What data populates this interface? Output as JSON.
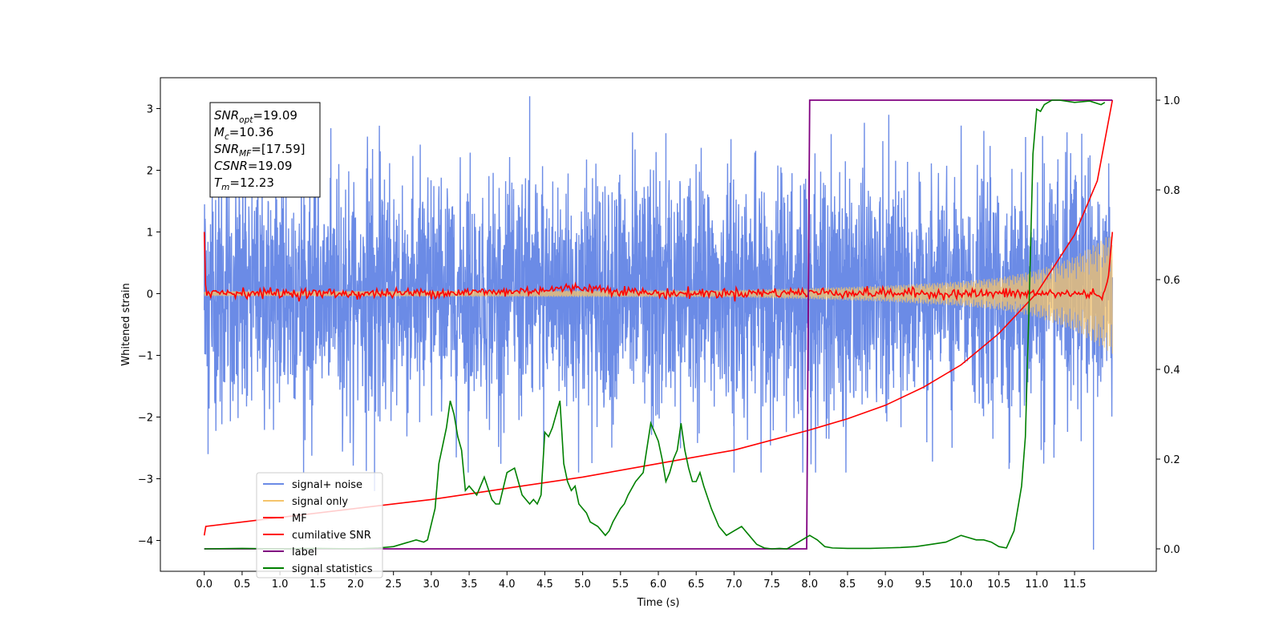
{
  "chart_data": {
    "type": "line",
    "xlabel": "Time (s)",
    "ylabel": "Whitened strain",
    "xlim": [
      -0.58,
      12.58
    ],
    "ylim": [
      -4.5,
      3.5
    ],
    "y2lim": [
      -0.05,
      1.05
    ],
    "xticks": [
      0.0,
      0.5,
      1.0,
      1.5,
      2.0,
      2.5,
      3.0,
      3.5,
      4.0,
      4.5,
      5.0,
      5.5,
      6.0,
      6.5,
      7.0,
      7.5,
      8.0,
      8.5,
      9.0,
      9.5,
      10.0,
      10.5,
      11.0,
      11.5
    ],
    "xtick_labels": [
      "0.0",
      "0.5",
      "1.0",
      "1.5",
      "2.0",
      "2.5",
      "3.0",
      "3.5",
      "4.0",
      "4.5",
      "5.0",
      "5.5",
      "6.0",
      "6.5",
      "7.0",
      "7.5",
      "8.0",
      "8.5",
      "9.0",
      "9.5",
      "10.0",
      "10.5",
      "11.0",
      "11.5"
    ],
    "yticks": [
      -4,
      -3,
      -2,
      -1,
      0,
      1,
      2,
      3
    ],
    "ytick_labels": [
      "−4",
      "−3",
      "−2",
      "−1",
      "0",
      "1",
      "2",
      "3"
    ],
    "y2ticks": [
      0.0,
      0.2,
      0.4,
      0.6,
      0.8,
      1.0
    ],
    "y2tick_labels": [
      "0.0",
      "0.2",
      "0.4",
      "0.6",
      "0.8",
      "1.0"
    ],
    "grid": false,
    "legend_position": "lower-left",
    "series": [
      {
        "name": "signal+ noise",
        "color": "#6b8be6",
        "axis": "left",
        "kind": "noise_band",
        "x_range": [
          0.0,
          12.0
        ],
        "typical_amplitude": 1.2,
        "max": 3.2,
        "min": -4.15
      },
      {
        "name": "signal only",
        "color": "#f5c46b",
        "axis": "left",
        "kind": "chirp_envelope",
        "x": [
          0.0,
          7.0,
          8.0,
          9.0,
          10.0,
          10.5,
          11.0,
          11.5,
          12.0
        ],
        "envelope": [
          0.04,
          0.06,
          0.09,
          0.13,
          0.2,
          0.26,
          0.38,
          0.6,
          0.98
        ]
      },
      {
        "name": "MF",
        "color": "#ff0000",
        "axis": "left",
        "x": [
          0.0,
          0.02,
          0.05,
          2.0,
          4.0,
          5.0,
          6.0,
          8.0,
          10.0,
          11.9,
          11.95,
          12.0
        ],
        "y": [
          1.0,
          0.0,
          0.02,
          0.0,
          0.03,
          0.1,
          0.0,
          0.02,
          0.0,
          0.0,
          0.3,
          1.0
        ]
      },
      {
        "name": "cumilative SNR",
        "color": "#ff0000",
        "axis": "right",
        "x": [
          0.0,
          0.02,
          1.0,
          2.0,
          3.0,
          4.0,
          5.0,
          6.0,
          7.0,
          8.0,
          8.5,
          9.0,
          9.5,
          10.0,
          10.5,
          11.0,
          11.5,
          11.8,
          12.0
        ],
        "y": [
          0.03,
          0.05,
          0.07,
          0.09,
          0.11,
          0.135,
          0.16,
          0.19,
          0.22,
          0.265,
          0.29,
          0.32,
          0.36,
          0.41,
          0.48,
          0.57,
          0.7,
          0.82,
          1.0
        ]
      },
      {
        "name": "label",
        "color": "#800080",
        "axis": "right",
        "x": [
          0.0,
          7.94,
          7.96,
          8.0,
          12.0
        ],
        "y": [
          0.0,
          0.0,
          0.0,
          1.0,
          1.0
        ]
      },
      {
        "name": "signal statistics",
        "color": "#008000",
        "axis": "right",
        "x": [
          0.0,
          0.5,
          1.0,
          1.5,
          2.0,
          2.3,
          2.5,
          2.7,
          2.8,
          2.9,
          2.95,
          3.05,
          3.1,
          3.15,
          3.2,
          3.25,
          3.3,
          3.35,
          3.4,
          3.45,
          3.5,
          3.6,
          3.7,
          3.8,
          3.85,
          3.9,
          4.0,
          4.1,
          4.15,
          4.2,
          4.3,
          4.35,
          4.4,
          4.45,
          4.5,
          4.55,
          4.6,
          4.7,
          4.75,
          4.8,
          4.85,
          4.9,
          4.95,
          5.0,
          5.05,
          5.1,
          5.2,
          5.3,
          5.35,
          5.4,
          5.5,
          5.55,
          5.6,
          5.7,
          5.8,
          5.9,
          6.0,
          6.05,
          6.1,
          6.15,
          6.2,
          6.25,
          6.3,
          6.35,
          6.4,
          6.45,
          6.5,
          6.55,
          6.6,
          6.7,
          6.8,
          6.9,
          7.0,
          7.1,
          7.2,
          7.3,
          7.4,
          7.5,
          7.6,
          7.7,
          7.8,
          7.9,
          8.0,
          8.1,
          8.2,
          8.3,
          8.5,
          8.8,
          9.0,
          9.2,
          9.4,
          9.6,
          9.8,
          10.0,
          10.1,
          10.2,
          10.3,
          10.4,
          10.5,
          10.6,
          10.7,
          10.8,
          10.85,
          10.9,
          10.95,
          11.0,
          11.05,
          11.1,
          11.2,
          11.3,
          11.5,
          11.7,
          11.85,
          11.9
        ],
        "y": [
          0.0,
          0.001,
          0.0,
          0.001,
          0.0,
          0.002,
          0.005,
          0.015,
          0.02,
          0.015,
          0.02,
          0.09,
          0.19,
          0.23,
          0.27,
          0.33,
          0.3,
          0.25,
          0.22,
          0.13,
          0.14,
          0.12,
          0.16,
          0.11,
          0.1,
          0.1,
          0.17,
          0.18,
          0.15,
          0.12,
          0.1,
          0.11,
          0.1,
          0.12,
          0.26,
          0.25,
          0.27,
          0.33,
          0.19,
          0.15,
          0.13,
          0.14,
          0.1,
          0.09,
          0.08,
          0.06,
          0.05,
          0.03,
          0.04,
          0.06,
          0.09,
          0.1,
          0.12,
          0.15,
          0.17,
          0.28,
          0.24,
          0.2,
          0.15,
          0.17,
          0.2,
          0.22,
          0.28,
          0.22,
          0.18,
          0.15,
          0.15,
          0.17,
          0.14,
          0.09,
          0.05,
          0.03,
          0.04,
          0.05,
          0.03,
          0.01,
          0.002,
          0.0,
          0.001,
          0.0,
          0.01,
          0.02,
          0.03,
          0.02,
          0.005,
          0.002,
          0.001,
          0.001,
          0.002,
          0.003,
          0.005,
          0.01,
          0.015,
          0.03,
          0.025,
          0.02,
          0.02,
          0.015,
          0.005,
          0.002,
          0.04,
          0.14,
          0.25,
          0.55,
          0.88,
          0.98,
          0.975,
          0.99,
          1.0,
          1.0,
          0.995,
          0.998,
          0.99,
          0.995
        ]
      }
    ],
    "annotation_box": {
      "lines": [
        {
          "var": "SNR",
          "sub": "opt",
          "value": "=19.09"
        },
        {
          "var": "M",
          "sub": "c",
          "value": "=10.36"
        },
        {
          "var": "SNR",
          "sub": "MF",
          "value": "=[17.59]"
        },
        {
          "var": "CSNR",
          "sub": "",
          "value": "=19.09"
        },
        {
          "var": "T",
          "sub": "m",
          "value": "=12.23"
        }
      ]
    }
  }
}
